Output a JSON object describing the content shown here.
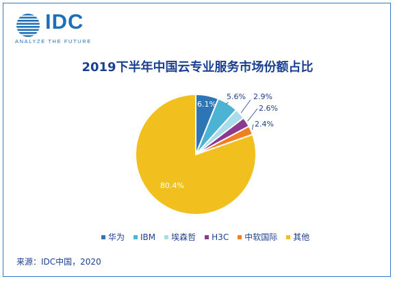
{
  "logo": {
    "text": "IDC",
    "tagline": "ANALYZE THE FUTURE"
  },
  "chart_data": {
    "type": "pie",
    "title": "2019下半年中国云专业服务市场份额占比",
    "slices": [
      {
        "label": "华为",
        "value": 6.1,
        "display": "6.1%",
        "color": "#2e75b6"
      },
      {
        "label": "IBM",
        "value": 5.6,
        "display": "5.6%",
        "color": "#4db3d4"
      },
      {
        "label": "埃森哲",
        "value": 2.9,
        "display": "2.9%",
        "color": "#a8dde9"
      },
      {
        "label": "H3C",
        "value": 2.6,
        "display": "2.6%",
        "color": "#8b3a8f"
      },
      {
        "label": "中软国际",
        "value": 2.4,
        "display": "2.4%",
        "color": "#f07f22"
      },
      {
        "label": "其他",
        "value": 80.4,
        "display": "80.4%",
        "color": "#f2c01e"
      }
    ],
    "legend_position": "bottom"
  },
  "source": "来源：IDC中国，2020"
}
